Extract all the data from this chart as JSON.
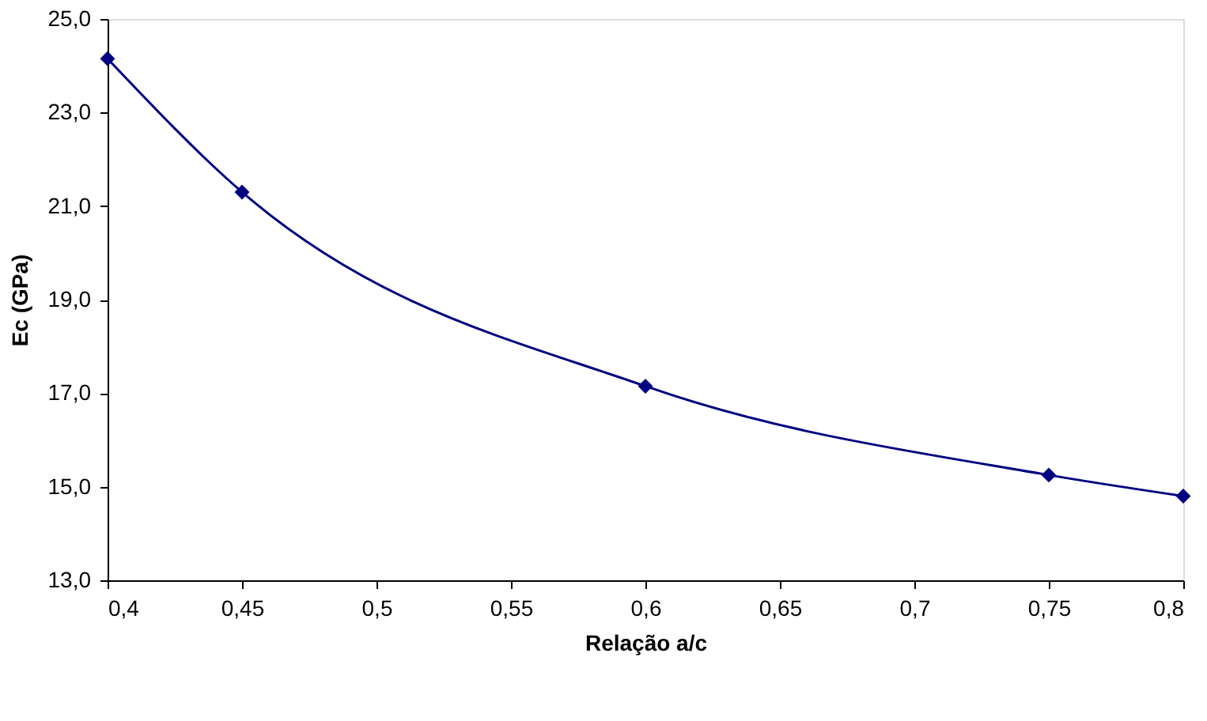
{
  "chart_data": {
    "type": "line",
    "xlabel": "Relação a/c",
    "ylabel": "Ec (GPa)",
    "x": [
      0.4,
      0.45,
      0.6,
      0.75,
      0.8
    ],
    "series": [
      {
        "color": "#000080",
        "values": [
          24.15,
          21.3,
          17.15,
          15.25,
          14.8
        ]
      }
    ],
    "xlim": [
      0.4,
      0.8
    ],
    "xticks": [
      {
        "value": 0.4,
        "label": "0,4"
      },
      {
        "value": 0.45,
        "label": "0,45"
      },
      {
        "value": 0.5,
        "label": "0,5"
      },
      {
        "value": 0.55,
        "label": "0,55"
      },
      {
        "value": 0.6,
        "label": "0,6"
      },
      {
        "value": 0.65,
        "label": "0,65"
      },
      {
        "value": 0.7,
        "label": "0,7"
      },
      {
        "value": 0.75,
        "label": "0,75"
      },
      {
        "value": 0.8,
        "label": "0,8"
      }
    ],
    "ylim": [
      13,
      25
    ],
    "yticks": [
      {
        "value": 13,
        "label": "13,0"
      },
      {
        "value": 15,
        "label": "15,0"
      },
      {
        "value": 17,
        "label": "17,0"
      },
      {
        "value": 19,
        "label": "19,0"
      },
      {
        "value": 21,
        "label": "21,0"
      },
      {
        "value": 23,
        "label": "23,0"
      },
      {
        "value": 25,
        "label": "25,0"
      }
    ],
    "grid": false,
    "marker": "diamond",
    "line_style": "solid"
  }
}
